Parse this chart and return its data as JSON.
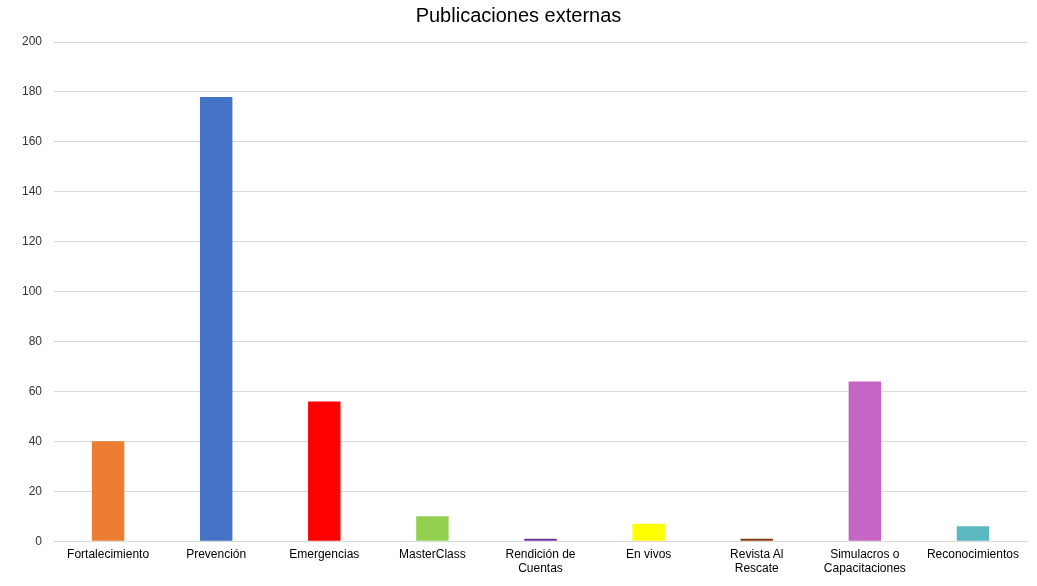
{
  "chart_data": {
    "type": "bar",
    "title": "Publicaciones externas",
    "categories": [
      "Fortalecimiento",
      "Prevención",
      "Emergencias",
      "MasterClass",
      "Rendición de Cuentas",
      "En vivos",
      "Revista Al Rescate",
      "Simulacros o Capacitaciones",
      "Reconocimientos"
    ],
    "values": [
      40,
      178,
      56,
      10,
      1,
      7,
      1,
      64,
      6
    ],
    "colors": [
      "#ed7d31",
      "#4472c4",
      "#ff0000",
      "#92d050",
      "#7030a0",
      "#ffff00",
      "#843c0c",
      "#c565c5",
      "#5bb8c1"
    ],
    "ylim": [
      0,
      200
    ],
    "yticks": [
      0,
      20,
      40,
      60,
      80,
      100,
      120,
      140,
      160,
      180,
      200
    ],
    "grid": "y",
    "legend": false
  }
}
